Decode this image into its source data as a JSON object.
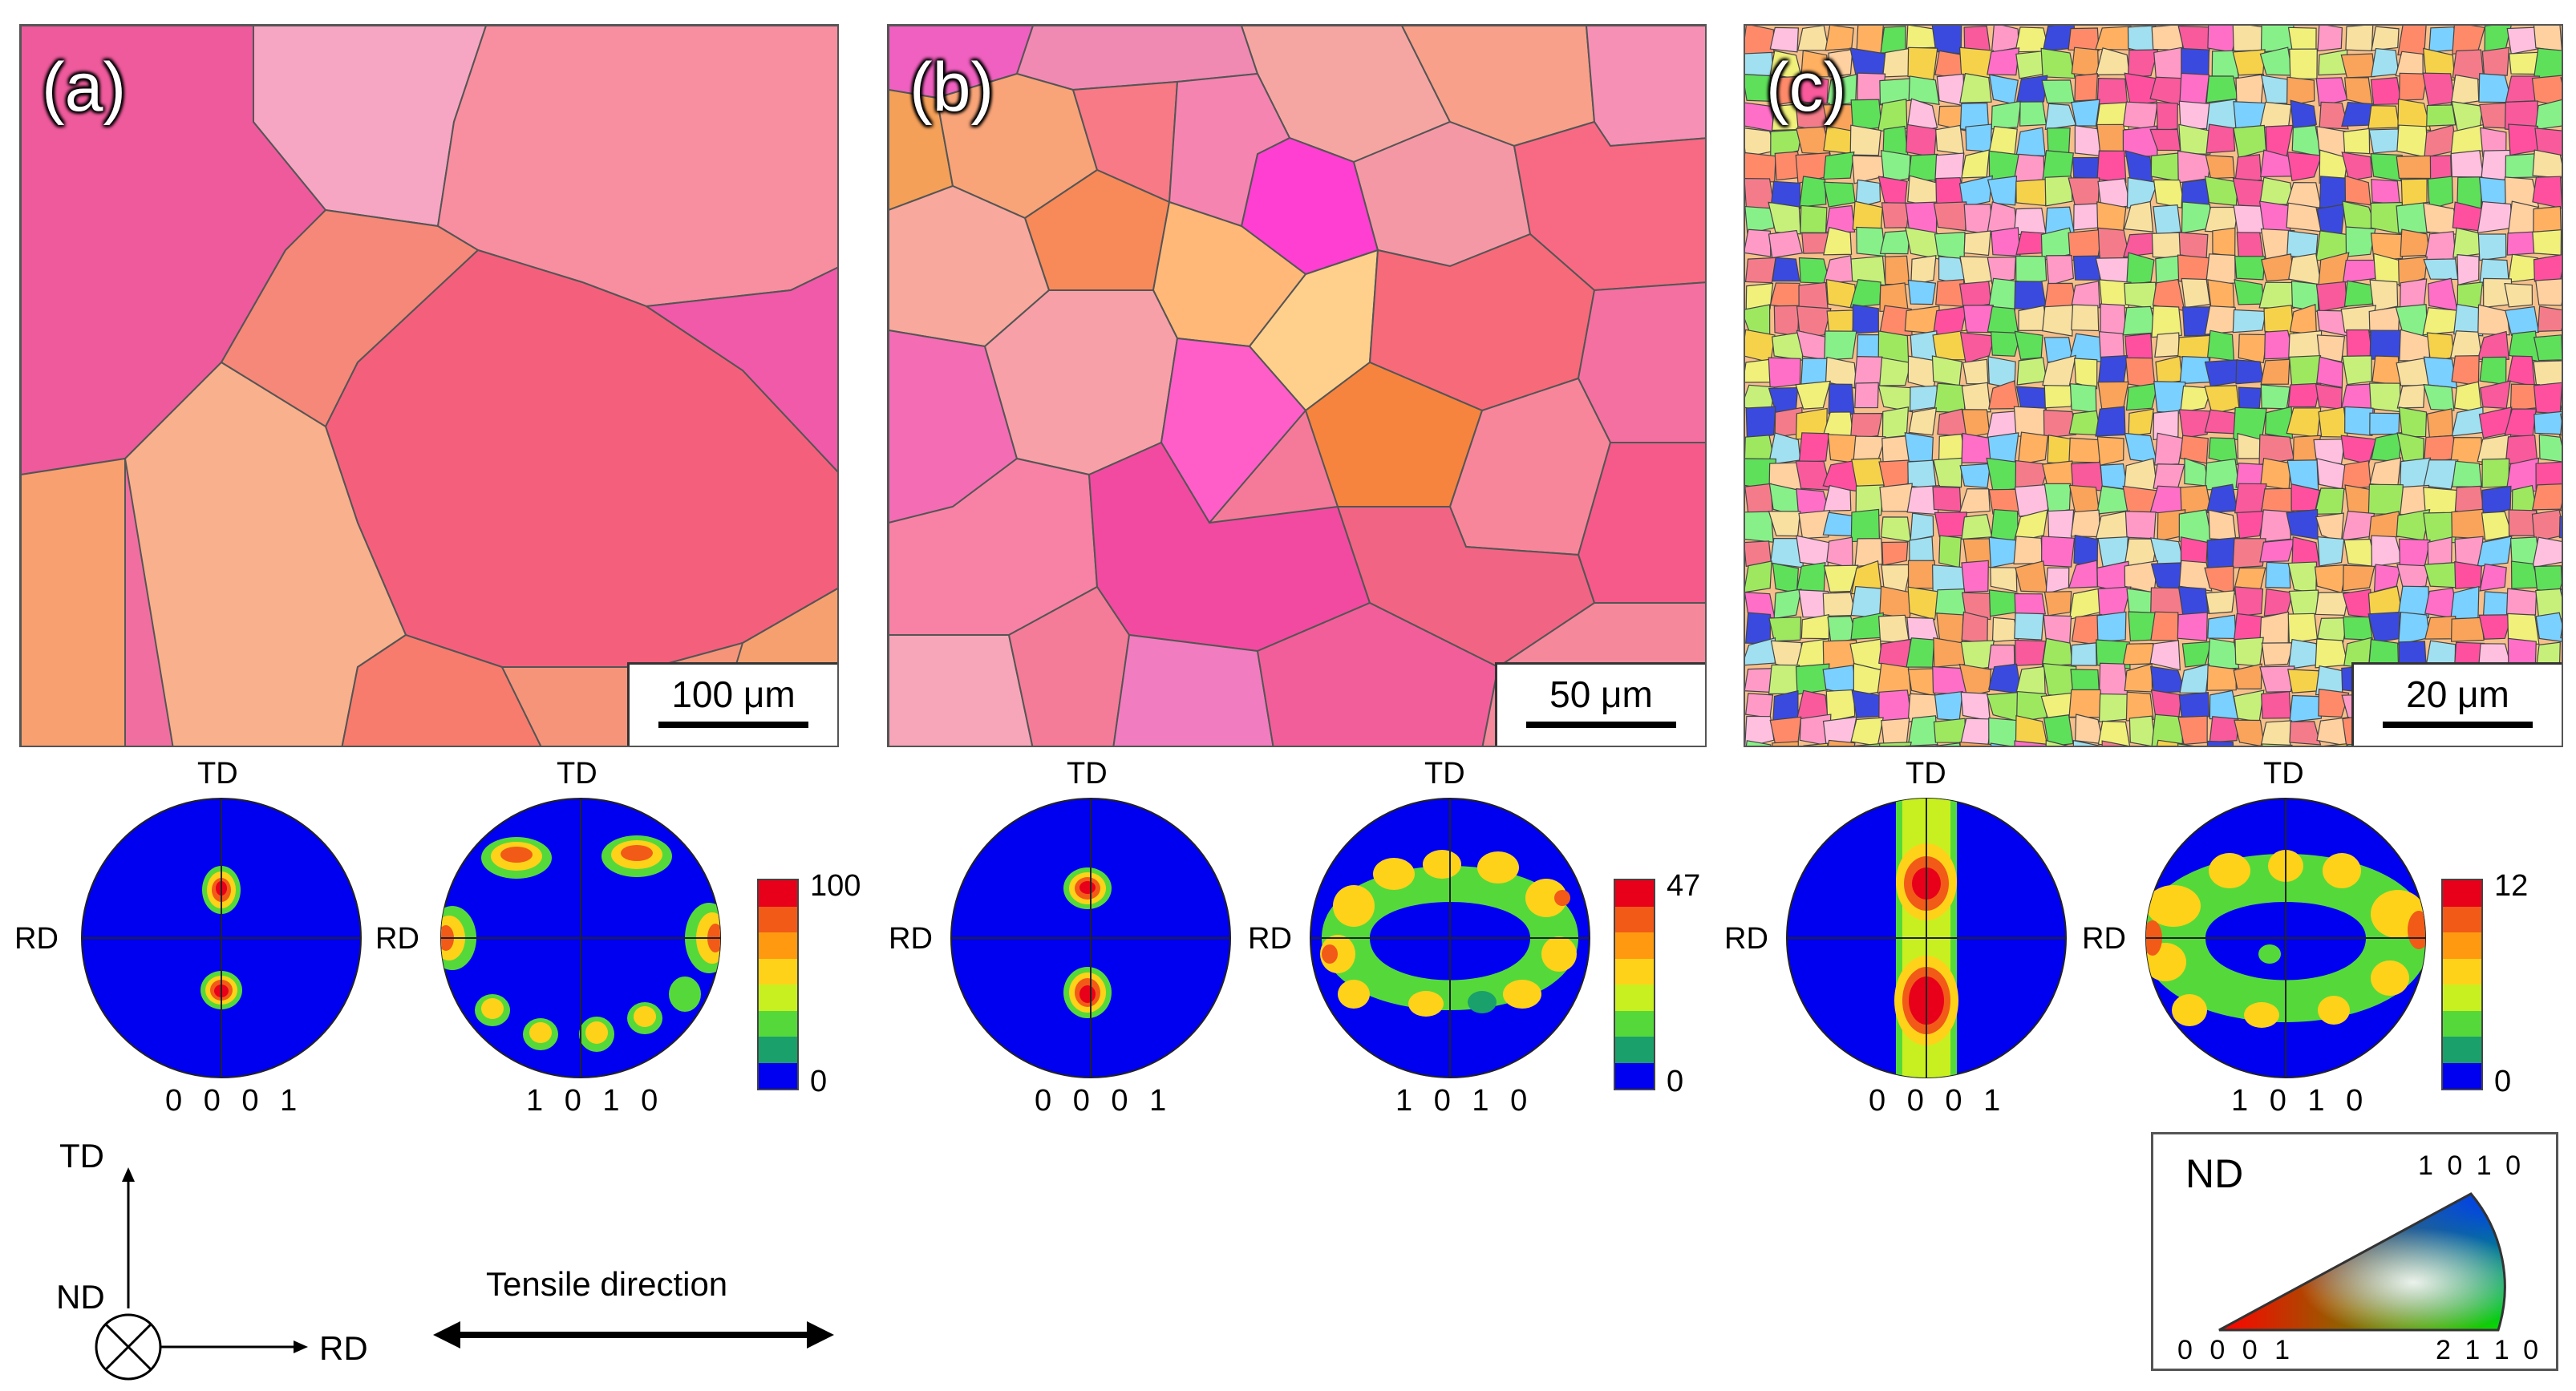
{
  "maps": [
    {
      "label": "(a)",
      "scale": "100 μm"
    },
    {
      "label": "(b)",
      "scale": "50 μm"
    },
    {
      "label": "(c)",
      "scale": "20 μm"
    }
  ],
  "pole_figures": {
    "td_label": "TD",
    "rd_label": "RD",
    "basal_name": "0 0 0 1",
    "prism_name": "1 0 1 0",
    "colorbar_max": [
      "100",
      "47",
      "12"
    ],
    "colorbar_min": "0",
    "colorbar_colors": [
      "#e8001a",
      "#f25a18",
      "#ff9a10",
      "#ffd21a",
      "#c8f020",
      "#55d93a",
      "#1aa06a",
      "#0000f0"
    ]
  },
  "coordinate_system": {
    "td": "TD",
    "nd": "ND",
    "rd": "RD",
    "tensile_direction": "Tensile direction"
  },
  "ipf_legend": {
    "title": "ND",
    "corner_0001": "0 0 0 1",
    "corner_1010": "1 0 1 0",
    "corner_2110": "2 1 1 0"
  }
}
